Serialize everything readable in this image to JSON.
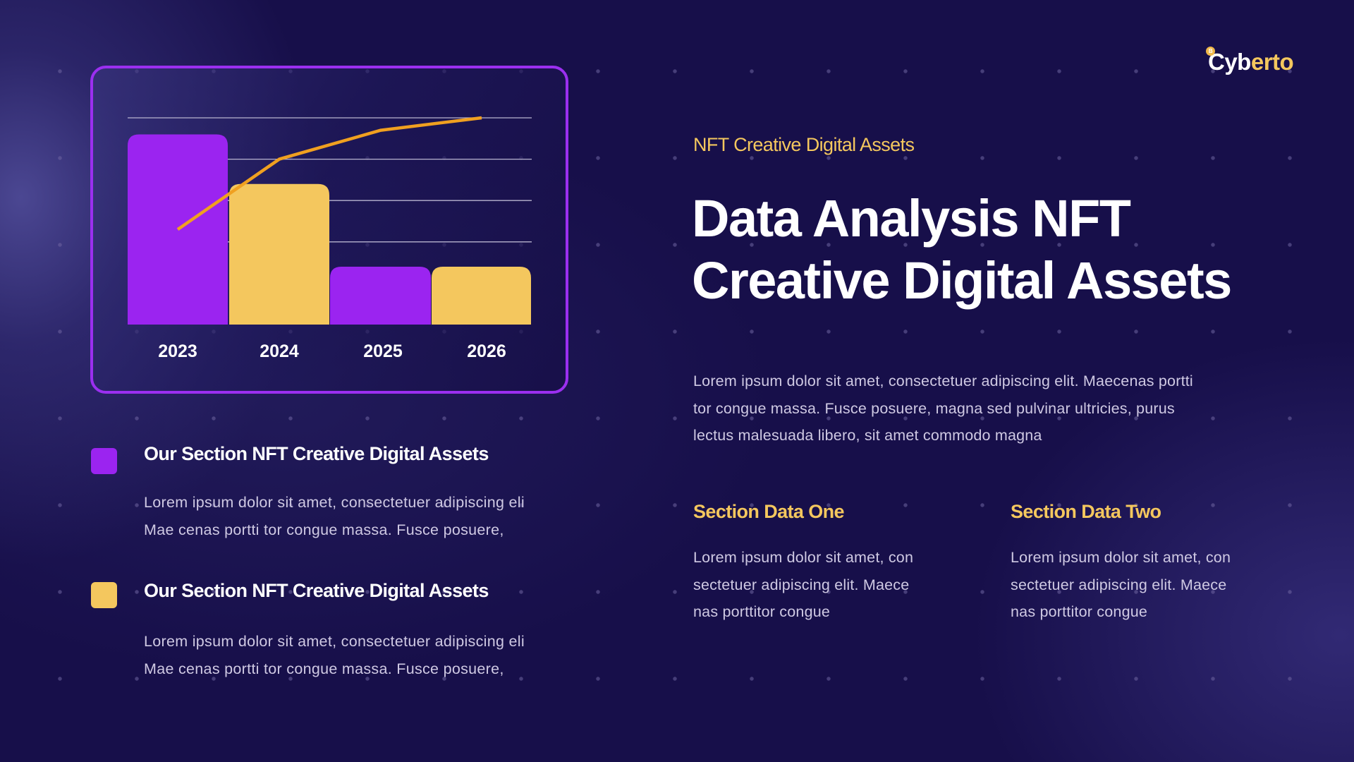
{
  "brand": {
    "logo_part1": "Cyb",
    "logo_part2": "erto",
    "coin_glyph": "B",
    "icon": "bitcoin-coin-icon",
    "colors": {
      "white": "#ffffff",
      "yellow": "#f4c75e"
    }
  },
  "theme": {
    "background": "#170f4a",
    "accent_purple": "#9b24f0",
    "accent_yellow": "#f4c75e",
    "line_orange": "#f0a020",
    "frame_border": "#9b2ff0",
    "gridline": "#b8b4cf",
    "body_text": "#cfc9e3"
  },
  "chart_data": {
    "type": "bar",
    "title": "",
    "xlabel": "",
    "ylabel": "",
    "categories": [
      "2023",
      "2024",
      "2025",
      "2026"
    ],
    "series": [
      {
        "name": "bars",
        "type": "bar",
        "values": [
          4.6,
          3.4,
          1.4,
          1.4
        ],
        "colors": [
          "#9b24f0",
          "#f4c75e",
          "#9b24f0",
          "#f4c75e"
        ]
      },
      {
        "name": "trend",
        "type": "line",
        "values": [
          2.3,
          4.0,
          4.7,
          5.0
        ],
        "color": "#f0a020"
      }
    ],
    "ylim": [
      0,
      5
    ],
    "gridlines": [
      2,
      3,
      4,
      5
    ],
    "grid": true,
    "legend": "none",
    "axis_ticks_shown": false
  },
  "headline": {
    "eyebrow": "NFT Creative Digital Assets",
    "title_line1": "Data Analysis NFT",
    "title_line2": "Creative Digital Assets",
    "paragraph_lines": [
      "Lorem ipsum dolor sit amet, consectetuer adipiscing elit. Maecenas portti",
      "tor congue massa. Fusce posuere, magna sed pulvinar ultricies, purus",
      "lectus malesuada libero, sit amet commodo magna"
    ]
  },
  "sections": [
    {
      "title": "Section Data One",
      "lines": [
        "Lorem ipsum dolor sit amet, con",
        "sectetuer adipiscing elit. Maece",
        "nas porttitor congue"
      ]
    },
    {
      "title": "Section Data Two",
      "lines": [
        "Lorem ipsum dolor sit amet, con",
        "sectetuer adipiscing elit. Maece",
        "nas porttitor congue"
      ]
    }
  ],
  "legend_items": [
    {
      "color": "#9b24f0",
      "title": "Our Section NFT Creative Digital Assets",
      "lines": [
        "Lorem ipsum dolor sit amet, consectetuer adipiscing eli",
        "Mae cenas portti tor congue massa. Fusce posuere,"
      ]
    },
    {
      "color": "#f4c75e",
      "title": "Our Section NFT Creative Digital Assets",
      "lines": [
        "Lorem ipsum dolor sit amet, consectetuer adipiscing eli",
        "Mae cenas portti tor congue massa. Fusce posuere,"
      ]
    }
  ]
}
